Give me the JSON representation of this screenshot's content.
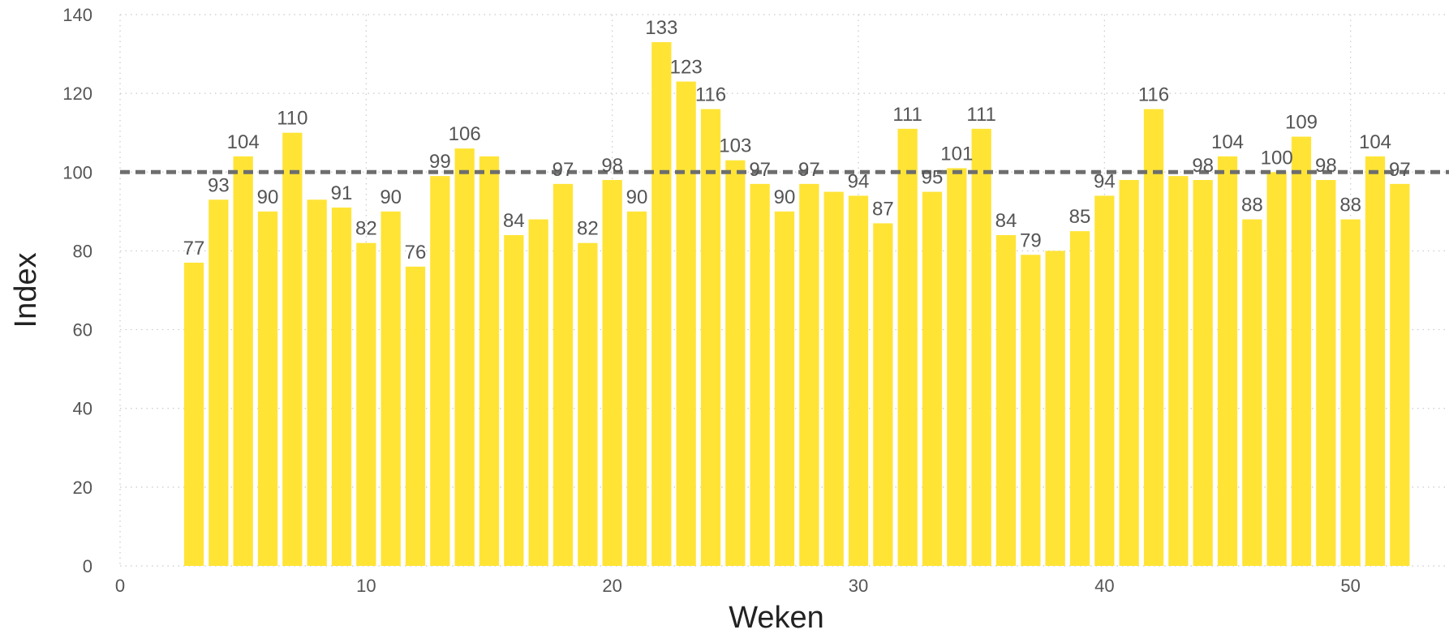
{
  "chart_data": {
    "type": "bar",
    "xlabel": "Weken",
    "ylabel": "Index",
    "xlim": [
      0,
      54
    ],
    "ylim": [
      0,
      140
    ],
    "xticks": [
      0,
      10,
      20,
      30,
      40,
      50
    ],
    "yticks": [
      0,
      20,
      40,
      60,
      80,
      100,
      120,
      140
    ],
    "grid": true,
    "reference_line": 100,
    "bar_color": "#FFE436",
    "reference_color": "#6E6E6E",
    "label_color": "#555555",
    "x": [
      3,
      4,
      5,
      6,
      7,
      8,
      9,
      10,
      11,
      12,
      13,
      14,
      15,
      16,
      17,
      18,
      19,
      20,
      21,
      22,
      23,
      24,
      25,
      26,
      27,
      28,
      29,
      30,
      31,
      32,
      33,
      34,
      35,
      36,
      37,
      38,
      39,
      40,
      41,
      42,
      43,
      44,
      45,
      46,
      47,
      48,
      49,
      50,
      51,
      52
    ],
    "values": [
      77,
      93,
      104,
      90,
      110,
      93,
      91,
      82,
      90,
      76,
      99,
      106,
      104,
      84,
      88,
      97,
      82,
      98,
      90,
      133,
      123,
      116,
      103,
      97,
      90,
      97,
      95,
      94,
      87,
      111,
      95,
      101,
      111,
      84,
      79,
      80,
      85,
      94,
      98,
      116,
      99,
      98,
      104,
      88,
      100,
      109,
      98,
      88,
      104,
      97
    ],
    "data_labels": [
      "77",
      "93",
      "104",
      "90",
      "110",
      "",
      "91",
      "82",
      "90",
      "76",
      "99",
      "106",
      "",
      "84",
      "",
      "97",
      "82",
      "98",
      "90",
      "133",
      "123",
      "116",
      "103",
      "97",
      "90",
      "97",
      "",
      "94",
      "87",
      "111",
      "95",
      "101",
      "111",
      "84",
      "79",
      "",
      "85",
      "94",
      "",
      "116",
      "",
      "98",
      "104",
      "88",
      "100",
      "109",
      "98",
      "88",
      "104",
      "97"
    ]
  }
}
